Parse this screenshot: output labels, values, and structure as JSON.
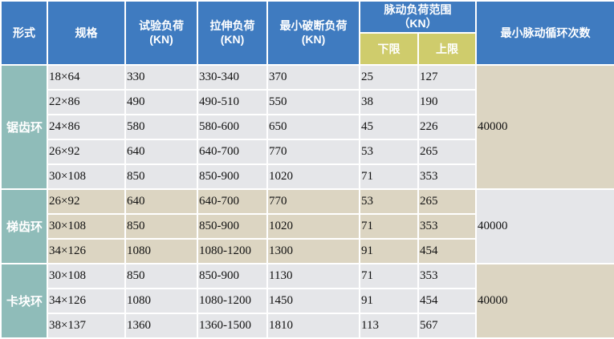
{
  "header": {
    "type": "形式",
    "spec": "规格",
    "test_load": "试验负荷",
    "test_load_unit": "(KN)",
    "tensile_load": "拉伸负荷",
    "tensile_load_unit": "(KN)",
    "min_break_load": "最小破断负荷",
    "min_break_load_unit": "(KN)",
    "pulse_range": "脉动负荷范围",
    "pulse_range_unit": "（KN）",
    "lower": "下限",
    "upper": "上限",
    "min_cycles": "最小脉动循环次数"
  },
  "colors": {
    "header": "#3f7bc0",
    "subheader": "#cfcc6c",
    "type_col": "#8fbcb9",
    "gray_row": "#e5e6e9",
    "beige_row": "#dcd5c2"
  },
  "groups": [
    {
      "type": "锯齿环",
      "cycles": "40000",
      "row_color": "gray",
      "cycles_color": "beige",
      "rows": [
        [
          "18×64",
          "330",
          "330-340",
          "370",
          "25",
          "127"
        ],
        [
          "22×86",
          "490",
          "490-510",
          "550",
          "38",
          "190"
        ],
        [
          "24×86",
          "580",
          "580-600",
          "650",
          "45",
          "226"
        ],
        [
          "26×92",
          "640",
          "640-700",
          "770",
          "53",
          "265"
        ],
        [
          "30×108",
          "850",
          "850-900",
          "1020",
          "71",
          "353"
        ]
      ]
    },
    {
      "type": "梯齿环",
      "cycles": "40000",
      "row_color": "beige",
      "cycles_color": "gray",
      "rows": [
        [
          "26×92",
          "640",
          "640-700",
          "770",
          "53",
          "265"
        ],
        [
          "30×108",
          "850",
          "850-900",
          "1020",
          "71",
          "353"
        ],
        [
          "34×126",
          "1080",
          "1080-1200",
          "1300",
          "91",
          "454"
        ]
      ]
    },
    {
      "type": "卡块环",
      "cycles": "40000",
      "row_color": "gray",
      "cycles_color": "beige",
      "rows": [
        [
          "30×108",
          "850",
          "850-900",
          "1130",
          "71",
          "353"
        ],
        [
          "34×126",
          "1080",
          "1080-1200",
          "1450",
          "91",
          "454"
        ],
        [
          "38×137",
          "1360",
          "1360-1500",
          "1810",
          "113",
          "567"
        ]
      ]
    }
  ]
}
